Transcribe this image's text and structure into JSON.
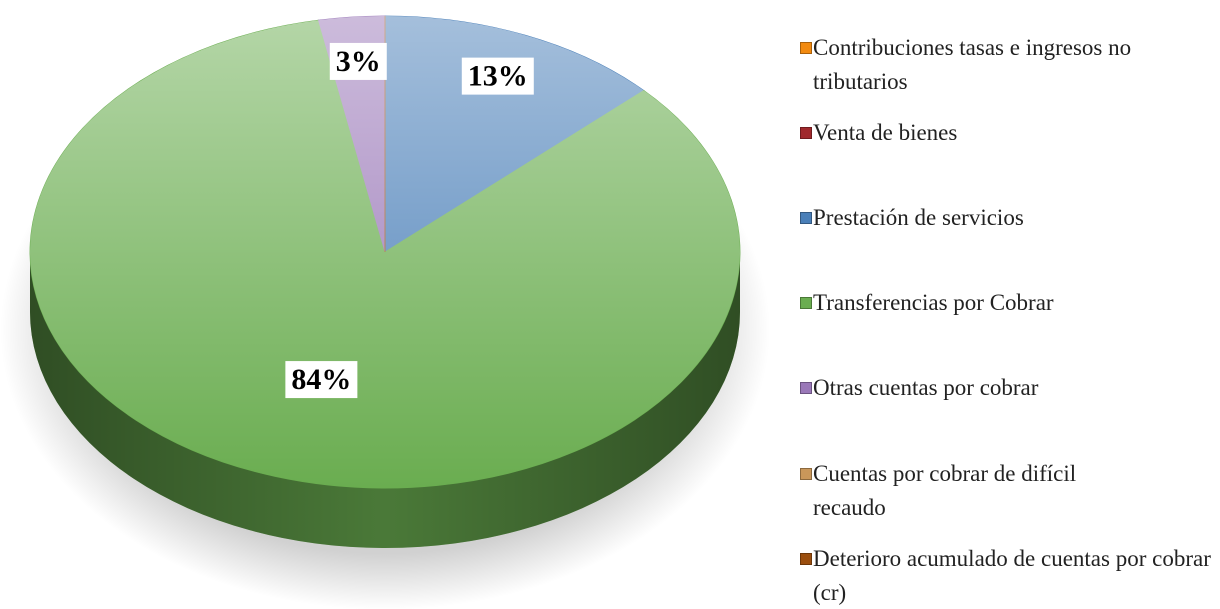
{
  "chart_data": {
    "type": "pie",
    "categories": [
      "Contribuciones tasas e ingresos no tributarios",
      "Venta de bienes",
      "Prestación de servicios",
      "Transferencias por Cobrar",
      "Otras cuentas por cobrar",
      "Cuentas por cobrar de difícil recaudo",
      "Deterioro acumulado de cuentas por cobrar (cr)"
    ],
    "values": [
      0,
      0,
      13,
      84,
      3,
      0,
      0
    ],
    "value_labels": [
      null,
      null,
      "13%",
      "84%",
      "3%",
      null,
      null
    ],
    "colors": [
      "#f28a10",
      "#a0282c",
      "#4a7fb8",
      "#6aad50",
      "#9a78b8",
      "#c9975a",
      "#9b4e0e"
    ],
    "legend": "right"
  }
}
